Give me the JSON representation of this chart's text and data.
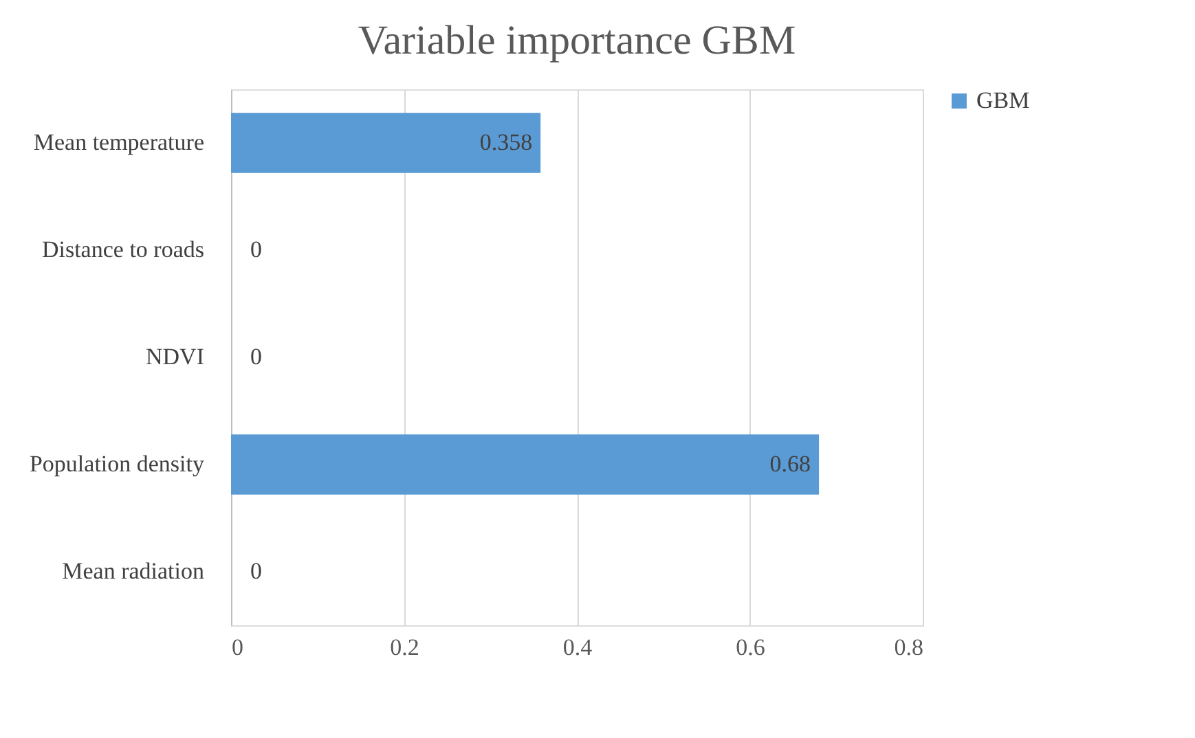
{
  "chart_data": {
    "type": "bar",
    "orientation": "horizontal",
    "title": "Variable importance GBM",
    "categories": [
      "Mean temperature",
      "Distance to roads",
      "NDVI",
      "Population density",
      "Mean radiation"
    ],
    "series": [
      {
        "name": "GBM",
        "color": "#5b9bd5",
        "values": [
          0.358,
          0,
          0,
          0.68,
          0
        ]
      }
    ],
    "xlim": [
      0,
      0.8
    ],
    "xticks": [
      0,
      0.2,
      0.4,
      0.6,
      0.8
    ],
    "grid": "x",
    "legend": "right",
    "data_labels": true
  }
}
